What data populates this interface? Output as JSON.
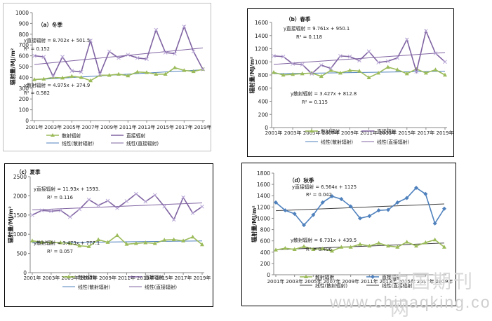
{
  "chart_data": [
    {
      "type": "line",
      "panel_label": "（a）冬季",
      "ylabel": "辐射量/MJ/m²",
      "ylim": [
        0,
        1000
      ],
      "yticks": [
        0,
        100,
        200,
        300,
        400,
        500,
        600,
        700,
        800,
        900,
        1000
      ],
      "x": [
        2001,
        2002,
        2003,
        2004,
        2005,
        2006,
        2007,
        2008,
        2009,
        2010,
        2011,
        2012,
        2013,
        2014,
        2015,
        2016,
        2017,
        2018,
        2019
      ],
      "x_tick_labels": [
        "2001年",
        "2003年",
        "2005年",
        "2007年",
        "2009年",
        "2011年",
        "2013年",
        "2015年",
        "2017年",
        "2019年"
      ],
      "series": [
        {
          "name": "散射辐射",
          "color": "#9bbb59",
          "marker": "triangle",
          "values": [
            380,
            385,
            400,
            395,
            410,
            400,
            370,
            420,
            420,
            430,
            415,
            450,
            445,
            430,
            430,
            490,
            465,
            455,
            475
          ]
        },
        {
          "name": "直接辐射",
          "color": "#8064a2",
          "marker": "x",
          "values": [
            600,
            590,
            410,
            590,
            460,
            450,
            740,
            430,
            640,
            580,
            610,
            580,
            570,
            840,
            630,
            620,
            870,
            640,
            475
          ]
        }
      ],
      "trendlines": [
        {
          "name": "线性(散射辐射)",
          "color": "#4f81bd",
          "equation": "y散射辐射 = 4.975x + 374.9",
          "r2": "R² = 0.582"
        },
        {
          "name": "线性(直接辐射)",
          "color": "#8064a2",
          "equation": "y直接辐射 = 8.702x + 501.5",
          "r2": "R² = 0.152"
        }
      ]
    },
    {
      "type": "line",
      "panel_label": "（b）春季",
      "ylabel": "辐射量/MJ/m²",
      "ylim": [
        0,
        1600
      ],
      "yticks": [
        0,
        200,
        400,
        600,
        800,
        1000,
        1200,
        1400,
        1600
      ],
      "x": [
        2001,
        2002,
        2003,
        2004,
        2005,
        2006,
        2007,
        2008,
        2009,
        2010,
        2011,
        2012,
        2013,
        2014,
        2015,
        2016,
        2017,
        2018,
        2019
      ],
      "x_tick_labels": [
        "2001年",
        "2003年",
        "2005年",
        "2007年",
        "2009年",
        "2011年",
        "2013年",
        "2015年",
        "2017年",
        "2019年"
      ],
      "series": [
        {
          "name": "散射辐射",
          "color": "#9bbb59",
          "marker": "triangle",
          "values": [
            840,
            800,
            810,
            820,
            830,
            780,
            870,
            830,
            870,
            860,
            760,
            830,
            920,
            880,
            820,
            890,
            830,
            880,
            800
          ]
        },
        {
          "name": "直接辐射",
          "color": "#8064a2",
          "marker": "x",
          "values": [
            1090,
            1080,
            970,
            960,
            820,
            950,
            900,
            1090,
            1080,
            1020,
            1160,
            990,
            1010,
            1060,
            1340,
            850,
            1470,
            1130,
            1000
          ]
        }
      ],
      "trendlines": [
        {
          "name": "线性(散射辐射)",
          "color": "#4f81bd",
          "equation": "y散射辐射 = 3.427x + 812.8",
          "r2": "R² = 0.115"
        },
        {
          "name": "线性(直接辐射)",
          "color": "#8064a2",
          "equation": "y直接辐射 = 9.761x + 950.1",
          "r2": "R² = 0.118"
        }
      ]
    },
    {
      "type": "line",
      "panel_label": "（c）夏季",
      "ylabel": "辐射量/MJ/m²",
      "ylim": [
        0,
        2500
      ],
      "yticks": [
        0,
        500,
        1000,
        1500,
        2000,
        2500
      ],
      "x": [
        2001,
        2002,
        2003,
        2004,
        2005,
        2006,
        2007,
        2008,
        2009,
        2010,
        2011,
        2012,
        2013,
        2014,
        2015,
        2016,
        2017,
        2018,
        2019
      ],
      "x_tick_labels": [
        "2001年",
        "2003年",
        "2005年",
        "2007年",
        "2009年",
        "2011年",
        "2013年",
        "2015年",
        "2017年",
        "2019年"
      ],
      "series": [
        {
          "name": "散射辐射",
          "color": "#9bbb59",
          "marker": "triangle",
          "values": [
            830,
            790,
            790,
            780,
            760,
            700,
            680,
            860,
            790,
            970,
            740,
            760,
            780,
            760,
            850,
            860,
            830,
            930,
            730
          ]
        },
        {
          "name": "直接辐射",
          "color": "#8064a2",
          "marker": "x",
          "values": [
            1500,
            1620,
            1600,
            1620,
            1450,
            1650,
            1900,
            1750,
            1870,
            1680,
            1860,
            2050,
            1850,
            2020,
            1720,
            1380,
            1960,
            1550,
            1720
          ]
        }
      ],
      "trendlines": [
        {
          "name": "线性(散射辐射)",
          "color": "#4f81bd",
          "equation": "y散射辐射 = 3.473x + 777.1",
          "r2": "R² = 0.057"
        },
        {
          "name": "线性(直接辐射)",
          "color": "#8064a2",
          "equation": "y直接辐射 = 11.93x + 1593.",
          "r2": "R² = 0.116"
        }
      ]
    },
    {
      "type": "line",
      "panel_label": "（d）秋季",
      "ylabel": "辐射量/MJ/m²",
      "ylim": [
        0,
        1800
      ],
      "yticks": [
        0,
        200,
        400,
        600,
        800,
        1000,
        1200,
        1400,
        1600,
        1800
      ],
      "x": [
        2001,
        2002,
        2003,
        2004,
        2005,
        2006,
        2007,
        2008,
        2009,
        2010,
        2011,
        2012,
        2013,
        2014,
        2015,
        2016,
        2017,
        2018,
        2019
      ],
      "x_tick_labels": [
        "2001年",
        "2003年",
        "2005年",
        "2007年",
        "2009年",
        "2011年",
        "2013年",
        "2015年",
        "2017年",
        "2019年"
      ],
      "series": [
        {
          "name": "散射辐射",
          "color": "#9bbb59",
          "marker": "triangle",
          "values": [
            440,
            470,
            450,
            500,
            450,
            460,
            420,
            490,
            490,
            540,
            510,
            560,
            510,
            490,
            580,
            510,
            570,
            620,
            490
          ]
        },
        {
          "name": "直接辐射",
          "color": "#4f81bd",
          "marker": "diamond",
          "values": [
            1280,
            1140,
            1080,
            880,
            1060,
            1280,
            1390,
            1340,
            1210,
            1000,
            1040,
            1140,
            1150,
            1280,
            1360,
            1540,
            1430,
            910,
            1170
          ]
        }
      ],
      "trendlines": [
        {
          "name": "线性(散射辐射)",
          "color": "#404040",
          "equation": "y散射辐射 = 6.731x + 439.5",
          "r2": "R² = 0.496"
        },
        {
          "name": "线性(直接辐射)",
          "color": "#404040",
          "equation": "y直接辐射 = 6.564x + 1125",
          "r2": "R² = 0.042"
        }
      ]
    }
  ],
  "watermark": {
    "url_text": "www.chinaqking.com",
    "cn_text": "中国期刊网"
  }
}
